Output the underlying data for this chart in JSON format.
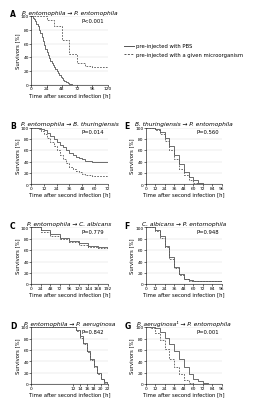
{
  "panels": [
    {
      "label": "A",
      "title": "P. entomophila → P. entomophila",
      "pvalue": "P<0.001",
      "xlabel": "Time after second infection [h]",
      "ylabel": "Survivors [%]",
      "xlim": [
        0,
        120
      ],
      "xticks": [
        0,
        24,
        48,
        72,
        96,
        120
      ],
      "ylim": [
        0,
        100
      ],
      "yticks": [
        0,
        20,
        40,
        60,
        80,
        100
      ],
      "solid": {
        "x": [
          0,
          2,
          4,
          6,
          8,
          10,
          12,
          14,
          16,
          18,
          20,
          22,
          24,
          26,
          28,
          30,
          32,
          34,
          36,
          38,
          40,
          42,
          44,
          46,
          48,
          50,
          52,
          54,
          56,
          58,
          60,
          62,
          64,
          66,
          68,
          70,
          72,
          96,
          120
        ],
        "y": [
          100,
          98,
          96,
          93,
          89,
          85,
          80,
          75,
          70,
          64,
          58,
          52,
          47,
          43,
          39,
          35,
          32,
          29,
          26,
          23,
          20,
          17,
          14,
          11,
          9,
          7,
          5,
          4,
          3,
          2,
          1,
          1,
          0,
          0,
          0,
          0,
          0,
          0,
          0
        ]
      },
      "dashed": {
        "x": [
          0,
          12,
          24,
          36,
          48,
          60,
          72,
          84,
          96,
          108,
          120
        ],
        "y": [
          100,
          100,
          95,
          85,
          65,
          45,
          32,
          27,
          25,
          25,
          25
        ]
      }
    },
    {
      "label": "B",
      "title": "P. entomophila → B. thuringiensis",
      "pvalue": "P=0.014",
      "xlabel": "Time after second infection [h]",
      "ylabel": "Survivors [%]",
      "xlim": [
        0,
        72
      ],
      "xticks": [
        0,
        12,
        24,
        36,
        48,
        60,
        72
      ],
      "ylim": [
        0,
        100
      ],
      "yticks": [
        0,
        20,
        40,
        60,
        80,
        100
      ],
      "solid": {
        "x": [
          0,
          3,
          6,
          9,
          12,
          15,
          18,
          21,
          24,
          27,
          30,
          33,
          36,
          39,
          42,
          45,
          48,
          51,
          54,
          57,
          60,
          63,
          66,
          69,
          72
        ],
        "y": [
          100,
          100,
          100,
          98,
          95,
          90,
          85,
          80,
          75,
          70,
          65,
          60,
          55,
          52,
          49,
          46,
          44,
          42,
          41,
          40,
          40,
          40,
          40,
          40,
          40
        ]
      },
      "dashed": {
        "x": [
          0,
          3,
          6,
          9,
          12,
          15,
          18,
          21,
          24,
          27,
          30,
          33,
          36,
          39,
          42,
          45,
          48,
          51,
          54,
          57,
          60,
          63,
          66,
          69,
          72
        ],
        "y": [
          100,
          100,
          98,
          94,
          88,
          82,
          75,
          68,
          60,
          52,
          45,
          38,
          31,
          27,
          24,
          21,
          19,
          17,
          16,
          15,
          15,
          15,
          15,
          15,
          15
        ]
      }
    },
    {
      "label": "C",
      "title": "P. entomophila → C. albicans",
      "pvalue": "P=0.779",
      "xlabel": "Time after second infection [h]",
      "ylabel": "Survivors [%]",
      "xlim": [
        0,
        192
      ],
      "xticks": [
        0,
        24,
        48,
        72,
        96,
        120,
        144,
        168,
        192
      ],
      "ylim": [
        0,
        100
      ],
      "yticks": [
        0,
        20,
        40,
        60,
        80,
        100
      ],
      "solid": {
        "x": [
          0,
          24,
          48,
          72,
          96,
          120,
          144,
          168,
          192
        ],
        "y": [
          100,
          95,
          88,
          82,
          76,
          72,
          68,
          65,
          62
        ]
      },
      "dashed": {
        "x": [
          0,
          24,
          48,
          72,
          96,
          120,
          144,
          168,
          192
        ],
        "y": [
          100,
          92,
          85,
          79,
          74,
          70,
          66,
          63,
          60
        ]
      }
    },
    {
      "label": "D",
      "title": "P. entomophila → P. aeruginosa",
      "pvalue": "P=0.842",
      "xlabel": "Time after second infection [h]",
      "ylabel": "Survivors [%]",
      "xlim": [
        0,
        22
      ],
      "xticks": [
        0,
        12,
        14,
        16,
        18,
        20,
        22
      ],
      "ylim": [
        0,
        100
      ],
      "yticks": [
        0,
        20,
        40,
        60,
        80,
        100
      ],
      "solid": {
        "x": [
          0,
          12,
          13,
          14,
          15,
          16,
          17,
          18,
          19,
          20,
          21,
          22
        ],
        "y": [
          100,
          100,
          95,
          85,
          72,
          58,
          45,
          32,
          20,
          10,
          4,
          2
        ]
      },
      "dashed": {
        "x": [
          0,
          12,
          13,
          14,
          15,
          16,
          17,
          18,
          19,
          20,
          21,
          22
        ],
        "y": [
          100,
          100,
          93,
          82,
          70,
          56,
          43,
          30,
          18,
          9,
          3,
          1
        ]
      }
    },
    {
      "label": "E",
      "title": "B. thuringiensis → P. entomophila",
      "pvalue": "P=0.560",
      "xlabel": "Time after second infection [h]",
      "ylabel": "Survivors [%]",
      "xlim": [
        0,
        96
      ],
      "xticks": [
        0,
        12,
        24,
        36,
        48,
        60,
        72,
        84,
        96
      ],
      "ylim": [
        0,
        100
      ],
      "yticks": [
        0,
        20,
        40,
        60,
        80,
        100
      ],
      "solid": {
        "x": [
          0,
          6,
          12,
          18,
          24,
          30,
          36,
          42,
          48,
          54,
          60,
          66,
          72,
          78,
          84,
          90,
          96
        ],
        "y": [
          100,
          100,
          98,
          92,
          82,
          68,
          52,
          36,
          22,
          13,
          7,
          3,
          1,
          0,
          0,
          0,
          0
        ]
      },
      "dashed": {
        "x": [
          0,
          6,
          12,
          18,
          24,
          30,
          36,
          42,
          48,
          54,
          60,
          66,
          72,
          78,
          84,
          90,
          96
        ],
        "y": [
          100,
          100,
          95,
          88,
          76,
          60,
          44,
          28,
          16,
          8,
          3,
          1,
          0,
          0,
          0,
          0,
          0
        ]
      }
    },
    {
      "label": "F",
      "title": "C. albicans → P. entomophila",
      "pvalue": "P=0.948",
      "xlabel": "Time after second infection [h]",
      "ylabel": "Survivors [%]",
      "xlim": [
        0,
        96
      ],
      "xticks": [
        0,
        12,
        24,
        36,
        48,
        60,
        72,
        84,
        96
      ],
      "ylim": [
        0,
        100
      ],
      "yticks": [
        0,
        20,
        40,
        60,
        80,
        100
      ],
      "solid": {
        "x": [
          0,
          6,
          12,
          18,
          24,
          30,
          36,
          42,
          48,
          54,
          60,
          66,
          72,
          78,
          84,
          90,
          96
        ],
        "y": [
          100,
          100,
          95,
          85,
          68,
          48,
          30,
          18,
          10,
          7,
          6,
          6,
          6,
          6,
          6,
          6,
          6
        ]
      },
      "dashed": {
        "x": [
          0,
          6,
          12,
          18,
          24,
          30,
          36,
          42,
          48,
          54,
          60,
          66,
          72,
          78,
          84,
          90,
          96
        ],
        "y": [
          100,
          100,
          93,
          82,
          65,
          45,
          28,
          16,
          9,
          6,
          5,
          5,
          5,
          5,
          5,
          5,
          5
        ]
      }
    },
    {
      "label": "G",
      "title": "P. aeruginosa¹ → P. entomophila",
      "pvalue": "P=0.001",
      "xlabel": "Time after second infection [h]",
      "ylabel": "Survivors [%]",
      "xlim": [
        0,
        96
      ],
      "xticks": [
        0,
        12,
        24,
        36,
        48,
        60,
        72,
        84,
        96
      ],
      "ylim": [
        0,
        100
      ],
      "yticks": [
        0,
        20,
        40,
        60,
        80,
        100
      ],
      "solid": {
        "x": [
          0,
          6,
          12,
          18,
          24,
          30,
          36,
          42,
          48,
          54,
          60,
          66,
          72,
          78,
          84,
          90,
          96
        ],
        "y": [
          100,
          100,
          98,
          92,
          82,
          70,
          58,
          44,
          30,
          18,
          10,
          5,
          2,
          1,
          0,
          0,
          0
        ]
      },
      "dashed": {
        "x": [
          0,
          6,
          12,
          18,
          24,
          30,
          36,
          42,
          48,
          54,
          60,
          66,
          72,
          78,
          84,
          90,
          96
        ],
        "y": [
          100,
          98,
          90,
          78,
          62,
          45,
          30,
          18,
          8,
          3,
          1,
          0,
          0,
          0,
          0,
          0,
          0
        ]
      }
    }
  ],
  "legend_solid": "pre-injected with PBS",
  "legend_dashed": "pre-injected with a given microorganism",
  "solid_color": "#555555",
  "dashed_color": "#555555",
  "bg_color": "#ffffff",
  "title_fontsize": 4.2,
  "label_fontsize": 3.8,
  "tick_fontsize": 3.2,
  "pval_fontsize": 3.8,
  "legend_fontsize": 3.8
}
